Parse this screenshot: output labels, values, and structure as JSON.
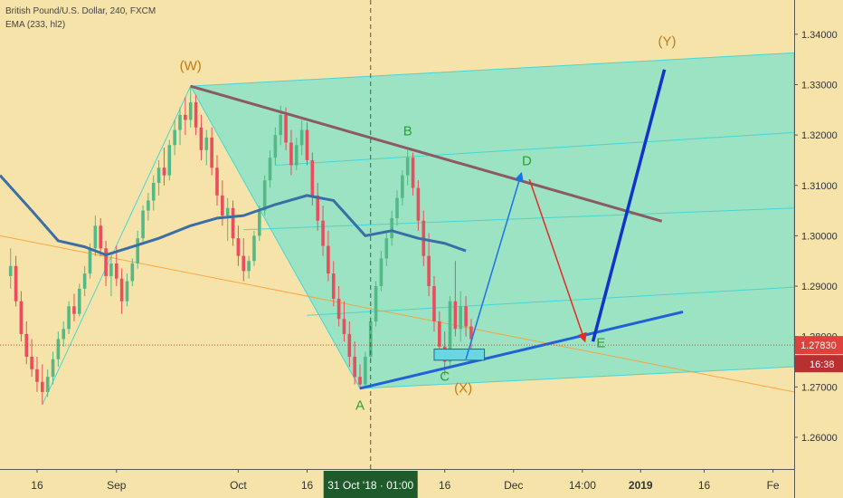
{
  "chart_data": {
    "type": "candlestick",
    "symbol_line": "British Pound/U.S. Dollar, 240, FXCM",
    "indicator_line": "EMA (233, hl2)",
    "price_labels": [
      "1.34000",
      "1.33000",
      "1.32000",
      "1.31000",
      "1.30000",
      "1.29000",
      "1.28000",
      "1.27000",
      "1.26000"
    ],
    "price_values": [
      1.34,
      1.33,
      1.32,
      1.31,
      1.3,
      1.29,
      1.28,
      1.27,
      1.26
    ],
    "ylim": [
      1.2537,
      1.3468
    ],
    "time_labels": [
      "16",
      "Sep",
      "Oct",
      "16",
      "16",
      "Dec",
      "14:00",
      "2019",
      "16",
      "Fe"
    ],
    "time_index": [
      5,
      20,
      43,
      56,
      82,
      95,
      108,
      119,
      131,
      144
    ],
    "xlim": [
      -2,
      148
    ],
    "crosshair": {
      "time_label": "31 Oct '18 · 01:00",
      "index": 68
    },
    "current_price": {
      "label": "1.27830",
      "value": 1.2783,
      "countdown": "16:38",
      "color": "#e0413c"
    },
    "wave_labels": [
      {
        "text": "(W)",
        "index": 34,
        "value": 1.3337,
        "color": "#c07a10"
      },
      {
        "text": "A",
        "index": 66,
        "value": 1.2663,
        "color": "#2da12d"
      },
      {
        "text": "B",
        "index": 75,
        "value": 1.3208,
        "color": "#2da12d"
      },
      {
        "text": "C",
        "index": 82,
        "value": 1.2721,
        "color": "#2da12d"
      },
      {
        "text": "(X)",
        "index": 85.5,
        "value": 1.2697,
        "color": "#c07a10"
      },
      {
        "text": "D",
        "index": 97.5,
        "value": 1.3148,
        "color": "#2da12d"
      },
      {
        "text": "E",
        "index": 111.5,
        "value": 1.2787,
        "color": "#2da12d"
      },
      {
        "text": "(Y)",
        "index": 124,
        "value": 1.3386,
        "color": "#c07a10"
      }
    ],
    "colors": {
      "bullish": "#53b987",
      "bearish": "#eb4d5c",
      "ema": "#3a6ea5",
      "channel_fill": "#5fe3d3",
      "channel_line": "#46d6d6",
      "resistance": "#8b5a64",
      "support": "#2060d8",
      "projection_up": "#1a73e8",
      "projection_down": "#e22b2b",
      "impulse": "#1133cc",
      "baseline": "#ff9b30",
      "crosshair": "#555555"
    },
    "ohlc_seed": 7,
    "ohlc": [
      [
        1.292,
        1.2975,
        1.2895,
        1.294
      ],
      [
        1.294,
        1.296,
        1.286,
        1.287
      ],
      [
        1.287,
        1.289,
        1.279,
        1.2805
      ],
      [
        1.2805,
        1.283,
        1.2745,
        1.276
      ],
      [
        1.276,
        1.2795,
        1.272,
        1.2735
      ],
      [
        1.2735,
        1.276,
        1.269,
        1.271
      ],
      [
        1.271,
        1.2745,
        1.2665,
        1.269
      ],
      [
        1.269,
        1.2735,
        1.268,
        1.272
      ],
      [
        1.272,
        1.277,
        1.2705,
        1.2755
      ],
      [
        1.2755,
        1.281,
        1.274,
        1.2795
      ],
      [
        1.2795,
        1.283,
        1.278,
        1.2815
      ],
      [
        1.2815,
        1.287,
        1.2805,
        1.286
      ],
      [
        1.286,
        1.2885,
        1.283,
        1.2845
      ],
      [
        1.2845,
        1.2905,
        1.284,
        1.2895
      ],
      [
        1.2895,
        1.294,
        1.288,
        1.2925
      ],
      [
        1.2925,
        1.2985,
        1.2915,
        1.2975
      ],
      [
        1.2975,
        1.304,
        1.296,
        1.302
      ],
      [
        1.302,
        1.3035,
        1.296,
        1.2975
      ],
      [
        1.2975,
        1.299,
        1.29,
        1.292
      ],
      [
        1.292,
        1.296,
        1.288,
        1.2945
      ],
      [
        1.2945,
        1.298,
        1.29,
        1.2915
      ],
      [
        1.2915,
        1.2935,
        1.2845,
        1.287
      ],
      [
        1.287,
        1.2925,
        1.286,
        1.291
      ],
      [
        1.291,
        1.2955,
        1.29,
        1.2945
      ],
      [
        1.2945,
        1.301,
        1.2935,
        1.2995
      ],
      [
        1.2995,
        1.306,
        1.2985,
        1.305
      ],
      [
        1.305,
        1.3085,
        1.303,
        1.307
      ],
      [
        1.307,
        1.312,
        1.305,
        1.3105
      ],
      [
        1.3105,
        1.315,
        1.308,
        1.3135
      ],
      [
        1.3135,
        1.3175,
        1.31,
        1.312
      ],
      [
        1.312,
        1.319,
        1.311,
        1.318
      ],
      [
        1.318,
        1.323,
        1.316,
        1.321
      ],
      [
        1.321,
        1.3255,
        1.318,
        1.324
      ],
      [
        1.324,
        1.3275,
        1.32,
        1.323
      ],
      [
        1.323,
        1.3298,
        1.3215,
        1.3265
      ],
      [
        1.3265,
        1.328,
        1.32,
        1.3215
      ],
      [
        1.3215,
        1.324,
        1.315,
        1.317
      ],
      [
        1.317,
        1.321,
        1.314,
        1.3195
      ],
      [
        1.3195,
        1.3215,
        1.312,
        1.3135
      ],
      [
        1.3135,
        1.316,
        1.306,
        1.308
      ],
      [
        1.308,
        1.311,
        1.302,
        1.304
      ],
      [
        1.304,
        1.3075,
        1.299,
        1.3055
      ],
      [
        1.3055,
        1.307,
        1.298,
        1.2995
      ],
      [
        1.2995,
        1.302,
        1.294,
        1.296
      ],
      [
        1.296,
        1.2995,
        1.291,
        1.293
      ],
      [
        1.293,
        1.296,
        1.2915,
        1.295
      ],
      [
        1.295,
        1.301,
        1.294,
        1.3
      ],
      [
        1.3,
        1.306,
        1.299,
        1.305
      ],
      [
        1.305,
        1.312,
        1.304,
        1.311
      ],
      [
        1.311,
        1.317,
        1.3095,
        1.3155
      ],
      [
        1.3155,
        1.3215,
        1.314,
        1.32
      ],
      [
        1.32,
        1.3258,
        1.318,
        1.324
      ],
      [
        1.324,
        1.3255,
        1.317,
        1.3185
      ],
      [
        1.3185,
        1.321,
        1.312,
        1.314
      ],
      [
        1.314,
        1.3195,
        1.313,
        1.318
      ],
      [
        1.318,
        1.323,
        1.316,
        1.321
      ],
      [
        1.321,
        1.3225,
        1.314,
        1.315
      ],
      [
        1.315,
        1.3165,
        1.306,
        1.308
      ],
      [
        1.308,
        1.3105,
        1.301,
        1.303
      ],
      [
        1.303,
        1.306,
        1.296,
        1.298
      ],
      [
        1.298,
        1.301,
        1.291,
        1.2925
      ],
      [
        1.2925,
        1.295,
        1.286,
        1.2875
      ],
      [
        1.2875,
        1.29,
        1.282,
        1.2835
      ],
      [
        1.2835,
        1.287,
        1.279,
        1.2805
      ],
      [
        1.2805,
        1.283,
        1.274,
        1.276
      ],
      [
        1.276,
        1.279,
        1.2705,
        1.272
      ],
      [
        1.272,
        1.2745,
        1.2695,
        1.2705
      ],
      [
        1.2705,
        1.277,
        1.27,
        1.276
      ],
      [
        1.276,
        1.284,
        1.275,
        1.283
      ],
      [
        1.283,
        1.291,
        1.282,
        1.29
      ],
      [
        1.29,
        1.297,
        1.289,
        1.2955
      ],
      [
        1.2955,
        1.301,
        1.294,
        1.2995
      ],
      [
        1.2995,
        1.305,
        1.298,
        1.3035
      ],
      [
        1.3035,
        1.309,
        1.302,
        1.3075
      ],
      [
        1.3075,
        1.313,
        1.306,
        1.312
      ],
      [
        1.312,
        1.317,
        1.31,
        1.3155
      ],
      [
        1.3155,
        1.3165,
        1.308,
        1.3095
      ],
      [
        1.3095,
        1.311,
        1.301,
        1.303
      ],
      [
        1.303,
        1.305,
        1.294,
        1.296
      ],
      [
        1.296,
        1.3005,
        1.288,
        1.29
      ],
      [
        1.29,
        1.292,
        1.281,
        1.283
      ],
      [
        1.283,
        1.285,
        1.276,
        1.278
      ],
      [
        1.278,
        1.281,
        1.2723,
        1.275
      ],
      [
        1.275,
        1.288,
        1.274,
        1.287
      ],
      [
        1.287,
        1.295,
        1.28,
        1.2815
      ],
      [
        1.2815,
        1.289,
        1.279,
        1.286
      ],
      [
        1.286,
        1.288,
        1.28,
        1.282
      ],
      [
        1.282,
        1.2835,
        1.2775,
        1.2795
      ]
    ],
    "ema_index": [
      -2,
      4,
      9,
      14,
      18,
      22,
      28,
      34,
      39,
      44,
      50,
      56,
      61,
      67,
      72,
      77,
      82,
      86
    ],
    "ema_values": [
      1.312,
      1.305,
      1.299,
      1.2978,
      1.2962,
      1.2975,
      1.2995,
      1.302,
      1.3035,
      1.304,
      1.3062,
      1.308,
      1.307,
      1.3,
      1.301,
      1.2995,
      1.2985,
      1.297
    ],
    "baseline": {
      "from": [
        -2,
        1.3
      ],
      "to": [
        148,
        1.269
      ]
    },
    "zigzag": [
      [
        6,
        1.2665
      ],
      [
        34,
        1.3297
      ]
    ],
    "channel_polygon": [
      [
        34,
        1.3297
      ],
      [
        148,
        1.3363
      ],
      [
        148,
        1.274
      ],
      [
        66,
        1.2697
      ]
    ],
    "channel_lines": [
      [
        [
          50,
          1.314
        ],
        [
          148,
          1.3205
        ]
      ],
      [
        [
          44,
          1.3012
        ],
        [
          148,
          1.3055
        ]
      ],
      [
        [
          56,
          1.2842
        ],
        [
          148,
          1.2898
        ]
      ]
    ],
    "resistance_line": [
      [
        34,
        1.3297
      ],
      [
        123,
        1.3029
      ]
    ],
    "support_line": [
      [
        66,
        1.2697
      ],
      [
        127,
        1.2849
      ]
    ],
    "zone_box": {
      "from": [
        80,
        1.2775
      ],
      "to": [
        89.5,
        1.2753
      ]
    },
    "projection_up": [
      [
        86,
        1.2755
      ],
      [
        96.5,
        1.3125
      ]
    ],
    "projection_down": [
      [
        98,
        1.3112
      ],
      [
        108.5,
        1.279
      ]
    ],
    "impulse_line": [
      [
        110,
        1.279
      ],
      [
        123.5,
        1.333
      ]
    ]
  }
}
